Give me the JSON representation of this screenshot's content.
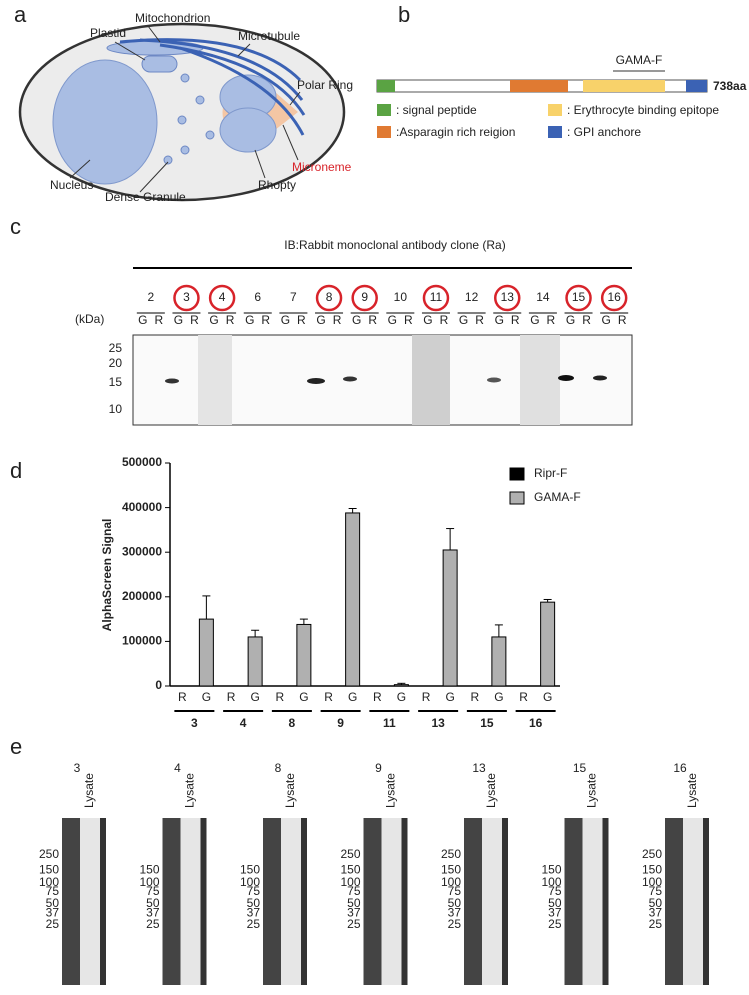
{
  "panel_letters": [
    "a",
    "b",
    "c",
    "d",
    "e"
  ],
  "diagram": {
    "labels": [
      "Plastid",
      "Mitochondrion",
      "Microtubule",
      "Polar Ring",
      "Nucleus",
      "Dense Granule",
      "Rhopty"
    ],
    "microneme": "Microneme"
  },
  "domain_map": {
    "fragment": "GAMA-F",
    "length": "738aa",
    "legend": [
      ": signal peptide",
      ":Asparagin rich reigion",
      ": Erythrocyte binding epitope",
      ": GPI anchore"
    ]
  },
  "blot": {
    "title": "IB:Rabbit monoclonal antibody clone (Ra)",
    "unit": "(kDa)",
    "clones": [
      2,
      3,
      4,
      6,
      7,
      8,
      9,
      10,
      11,
      12,
      13,
      14,
      15,
      16
    ],
    "circled": [
      false,
      true,
      true,
      false,
      false,
      true,
      true,
      false,
      true,
      false,
      true,
      false,
      true,
      true
    ],
    "lanes": [
      "G",
      "R"
    ],
    "markers": [
      25,
      20,
      15,
      10
    ]
  },
  "chart_data": {
    "type": "bar",
    "y_label": "AlphaScreen Signal",
    "categories": [
      "3",
      "4",
      "8",
      "9",
      "11",
      "13",
      "15",
      "16"
    ],
    "bar_labels": [
      "R",
      "G"
    ],
    "series": [
      {
        "name": "Ripr-F",
        "color": "#000000",
        "values": [
          0,
          0,
          0,
          0,
          0,
          0,
          0,
          0
        ]
      },
      {
        "name": "GAMA-F",
        "color": "#b0b0b0",
        "values": [
          150000,
          110000,
          138000,
          388000,
          3000,
          305000,
          110000,
          188000
        ],
        "errors": [
          52000,
          15000,
          12000,
          10000,
          3000,
          48000,
          27000,
          6000
        ]
      }
    ],
    "ylim": [
      0,
      500000
    ],
    "yticks": [
      0,
      100000,
      200000,
      300000,
      400000,
      500000
    ],
    "legend": "upper right"
  },
  "lysate_blots": {
    "lane_label": "Lysate",
    "blots": [
      {
        "clone": "3",
        "markers": [
          250,
          150,
          100,
          75,
          50,
          37,
          25
        ]
      },
      {
        "clone": "4",
        "markers": [
          150,
          100,
          75,
          50,
          37,
          25
        ]
      },
      {
        "clone": "8",
        "markers": [
          150,
          100,
          75,
          50,
          37,
          25
        ]
      },
      {
        "clone": "9",
        "markers": [
          250,
          150,
          100,
          75,
          50,
          37,
          25
        ]
      },
      {
        "clone": "13",
        "markers": [
          250,
          150,
          100,
          75,
          50,
          37,
          25
        ]
      },
      {
        "clone": "15",
        "markers": [
          150,
          100,
          75,
          50,
          37,
          25
        ]
      },
      {
        "clone": "16",
        "markers": [
          250,
          150,
          100,
          75,
          50,
          37,
          25
        ]
      }
    ]
  }
}
